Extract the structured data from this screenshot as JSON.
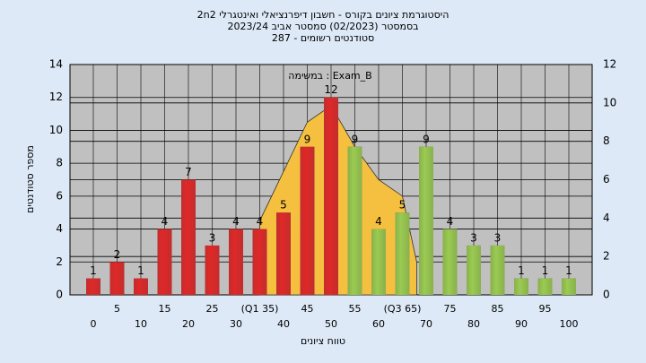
{
  "chart_data": {
    "type": "bar",
    "title_lines": [
      "היסטוגרמת ציונים בקורס - חשבון דיפרנציאלי ואינטגרלי 2ח2",
      "בסמסטר (02/2023)  סמסטר אביב 2023/24",
      "סטודנטים רשומים - 287"
    ],
    "annotation": "במשימה : Exam_B",
    "x_label": "טווח ציונים",
    "y_label": "מספר סטודנטים",
    "categories": [
      "0",
      "5",
      "10",
      "15",
      "20",
      "25",
      "30",
      "(Q1 35)",
      "40",
      "45",
      "50",
      "55",
      "60",
      "(Q3 65)",
      "70",
      "75",
      "80",
      "85",
      "90",
      "95",
      "100"
    ],
    "values": [
      1,
      2,
      1,
      4,
      7,
      3,
      4,
      4,
      5,
      9,
      12,
      9,
      4,
      5,
      9,
      4,
      3,
      3,
      1,
      1,
      1
    ],
    "colors": [
      "#e02828",
      "#e02828",
      "#e02828",
      "#e02828",
      "#e02828",
      "#e02828",
      "#e02828",
      "#e02828",
      "#e02828",
      "#e02828",
      "#e02828",
      "#9acb50",
      "#9acb50",
      "#9acb50",
      "#9acb50",
      "#9acb50",
      "#9acb50",
      "#9acb50",
      "#9acb50",
      "#9acb50",
      "#9acb50"
    ],
    "area": {
      "x": [
        35,
        45,
        50,
        55,
        60,
        65,
        68
      ],
      "values": [
        4.5,
        10.5,
        11.5,
        9,
        7,
        6,
        2
      ],
      "color": "#f5c040"
    },
    "ylim": [
      0,
      14
    ],
    "yticks": [
      0,
      2,
      4,
      6,
      8,
      10,
      12,
      14
    ],
    "y2lim": [
      0,
      12
    ],
    "y2ticks": [
      0,
      2,
      4,
      6,
      8,
      10,
      12
    ],
    "grid": true
  }
}
